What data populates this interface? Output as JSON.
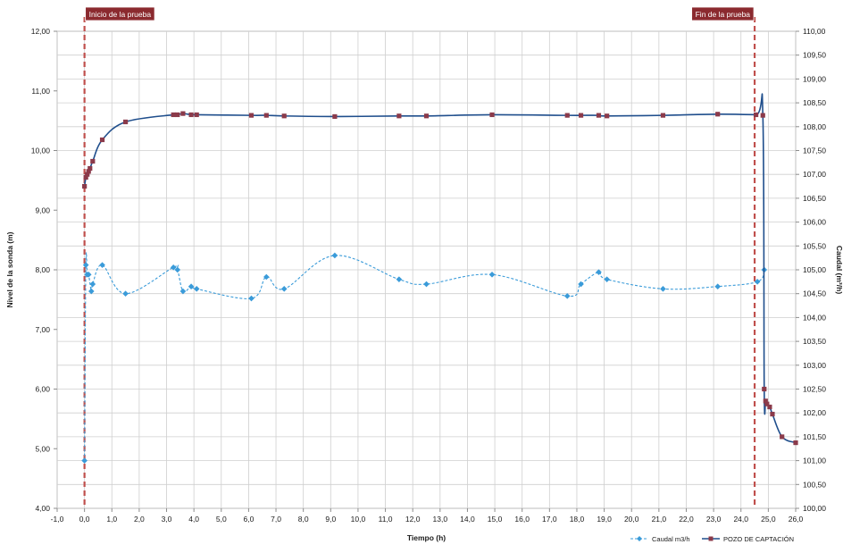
{
  "chart_data": {
    "type": "line",
    "title": "",
    "xlabel": "Tiempo (h)",
    "ylabel": "Nivel de la sonda (m)",
    "y2label": "Caudal (m³/h)",
    "xlim": [
      -1,
      26
    ],
    "ylim": [
      4,
      12
    ],
    "y2lim": [
      100,
      110
    ],
    "x_ticks": [
      "-1,0",
      "0,0",
      "1,0",
      "2,0",
      "3,0",
      "4,0",
      "5,0",
      "6,0",
      "7,0",
      "8,0",
      "9,0",
      "10,0",
      "11,0",
      "12,0",
      "13,0",
      "14,0",
      "15,0",
      "16,0",
      "17,0",
      "18,0",
      "19,0",
      "20,0",
      "21,0",
      "22,0",
      "23,0",
      "24,0",
      "25,0",
      "26,0"
    ],
    "y_ticks": [
      "4,00",
      "5,00",
      "6,00",
      "7,00",
      "8,00",
      "9,00",
      "10,00",
      "11,00",
      "12,00"
    ],
    "y2_ticks": [
      "100,00",
      "100,50",
      "101,00",
      "101,50",
      "102,00",
      "102,50",
      "103,00",
      "103,50",
      "104,00",
      "104,50",
      "105,00",
      "105,50",
      "106,00",
      "106,50",
      "107,00",
      "107,50",
      "108,00",
      "108,50",
      "109,00",
      "109,50",
      "110,00"
    ],
    "grid": true,
    "legend_position": "bottom-right",
    "annotations": [
      {
        "text": "Inicio de la prueba",
        "x": 0
      },
      {
        "text": "Fin de la prueba",
        "x": 24.5
      }
    ],
    "series": [
      {
        "name": "Caudal m3/h",
        "axis": "right",
        "color": "#3a9bd9",
        "style": "dashed-diamond",
        "x": [
          0.0,
          0.05,
          0.1,
          0.15,
          0.25,
          0.3,
          0.65,
          1.5,
          3.25,
          3.4,
          3.6,
          3.9,
          4.1,
          6.1,
          6.65,
          7.3,
          9.15,
          11.5,
          12.5,
          14.9,
          17.65,
          18.15,
          18.8,
          19.1,
          21.15,
          23.15,
          24.6,
          24.85
        ],
        "values": [
          101.0,
          105.1,
          104.9,
          104.9,
          104.55,
          104.7,
          105.1,
          104.5,
          105.05,
          105.0,
          104.55,
          104.65,
          104.6,
          104.4,
          104.85,
          104.6,
          105.3,
          104.8,
          104.7,
          104.9,
          104.45,
          104.7,
          104.95,
          104.8,
          104.6,
          104.65,
          104.75,
          105.0
        ]
      },
      {
        "name": "POZO DE CAPTACIÓN",
        "axis": "left",
        "color": "#1f4e8c",
        "marker_color": "#8b3a4a",
        "style": "solid-square",
        "x": [
          0.0,
          0.05,
          0.1,
          0.15,
          0.2,
          0.3,
          0.65,
          1.5,
          3.25,
          3.4,
          3.6,
          3.9,
          4.1,
          6.1,
          6.65,
          7.3,
          9.15,
          11.5,
          12.5,
          14.9,
          17.65,
          18.15,
          18.8,
          19.1,
          21.15,
          23.15,
          24.55,
          24.8,
          24.85,
          24.9,
          24.95,
          25.05,
          25.15,
          25.5,
          26.0
        ],
        "values": [
          9.4,
          9.55,
          9.6,
          9.65,
          9.7,
          9.82,
          10.18,
          10.48,
          10.6,
          10.6,
          10.62,
          10.6,
          10.6,
          10.59,
          10.59,
          10.58,
          10.57,
          10.58,
          10.58,
          10.6,
          10.59,
          10.59,
          10.59,
          10.58,
          10.59,
          10.61,
          10.6,
          10.59,
          6.0,
          5.8,
          5.75,
          5.7,
          5.58,
          5.2,
          5.1
        ]
      }
    ]
  }
}
